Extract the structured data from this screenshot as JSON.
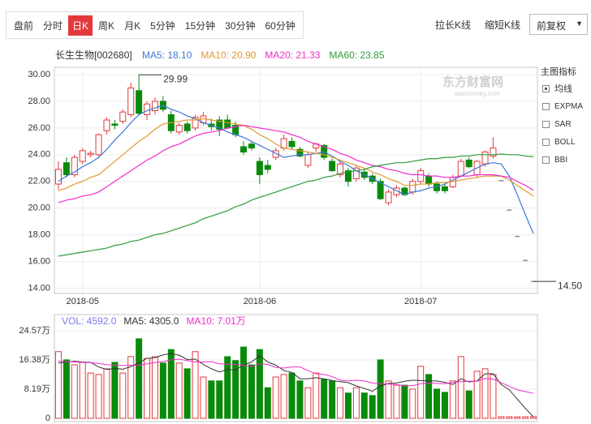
{
  "toolbar": {
    "tabs": [
      "盘前",
      "分时",
      "日K",
      "周K",
      "月K",
      "5分钟",
      "15分钟",
      "30分钟",
      "60分钟"
    ],
    "buttons": [
      "拉长K线",
      "缩短K线"
    ],
    "select": "前复权"
  },
  "sidebar": {
    "title": "主图指标",
    "options": [
      "均线",
      "EXPMA",
      "SAR",
      "BOLL",
      "BBI"
    ]
  },
  "watermark": {
    "name": "东方财富网",
    "url": "eastmoney.com"
  },
  "chart_data": [
    {
      "type": "candlestick",
      "title": "长生生物[002680]",
      "categories": [
        null,
        null,
        null,
        "2018-05",
        null,
        null,
        null,
        null,
        null,
        null,
        null,
        null,
        null,
        null,
        null,
        null,
        null,
        null,
        null,
        null,
        null,
        null,
        null,
        null,
        null,
        "2018-06",
        null,
        null,
        null,
        null,
        null,
        null,
        null,
        null,
        null,
        null,
        null,
        null,
        null,
        null,
        null,
        null,
        null,
        null,
        null,
        "2018-07",
        null,
        null,
        null,
        null,
        null,
        null,
        null,
        null,
        null,
        null,
        null,
        null,
        null,
        null
      ],
      "open": [
        21.8,
        23.4,
        22.5,
        23.5,
        24.0,
        24.0,
        25.8,
        26.3,
        26.5,
        27.0,
        28.8,
        27.0,
        27.3,
        28.0,
        27.0,
        25.7,
        26.3,
        26.0,
        26.4,
        26.3,
        26.6,
        26.6,
        26.2,
        24.6,
        24.8,
        23.5,
        23.2,
        23.8,
        24.5,
        25.0,
        24.4,
        23.2,
        24.5,
        24.7,
        23.5,
        22.5,
        22.8,
        22.2,
        22.7,
        22.4,
        22.0,
        20.4,
        21.0,
        21.5,
        21.2,
        22.0,
        22.4,
        21.8,
        21.6,
        21.6,
        22.4,
        23.6,
        22.5,
        23.3,
        23.9,
        22.05,
        19.85,
        17.87,
        16.08,
        14.5
      ],
      "high": [
        23.5,
        23.8,
        24.0,
        24.5,
        24.3,
        25.6,
        26.8,
        26.6,
        27.4,
        29.4,
        29.99,
        28.0,
        28.3,
        28.4,
        27.3,
        26.4,
        26.5,
        27.0,
        27.2,
        26.7,
        26.9,
        27.0,
        26.5,
        25.0,
        25.0,
        23.8,
        23.6,
        24.5,
        25.5,
        25.3,
        24.6,
        24.2,
        24.9,
        24.8,
        23.7,
        23.5,
        23.0,
        23.2,
        22.9,
        22.6,
        22.2,
        21.4,
        21.7,
        21.6,
        22.2,
        23.0,
        22.6,
        22.0,
        21.8,
        22.5,
        23.7,
        23.8,
        23.6,
        24.3,
        25.3,
        22.05,
        19.85,
        17.87,
        16.08,
        14.5
      ],
      "low": [
        21.4,
        22.3,
        22.3,
        23.3,
        23.8,
        23.9,
        25.5,
        25.9,
        26.3,
        26.8,
        27.0,
        26.6,
        27.0,
        27.2,
        25.6,
        25.5,
        25.6,
        25.8,
        26.2,
        25.8,
        25.4,
        25.9,
        25.3,
        24.0,
        24.3,
        21.8,
        22.6,
        23.6,
        24.3,
        24.4,
        23.8,
        23.0,
        24.2,
        23.6,
        22.7,
        22.3,
        21.6,
        22.0,
        22.1,
        21.8,
        20.6,
        20.2,
        20.8,
        20.9,
        21.0,
        21.8,
        21.6,
        21.1,
        21.1,
        21.5,
        22.3,
        23.0,
        22.3,
        23.1,
        23.7,
        22.05,
        19.85,
        17.87,
        16.08,
        14.5
      ],
      "close": [
        22.9,
        22.5,
        23.8,
        24.3,
        24.1,
        25.5,
        26.6,
        26.2,
        27.2,
        29.0,
        27.1,
        27.8,
        28.0,
        27.4,
        25.8,
        26.2,
        25.8,
        26.8,
        26.9,
        26.1,
        25.9,
        26.0,
        25.5,
        24.2,
        24.5,
        22.5,
        22.9,
        24.3,
        25.2,
        24.6,
        23.9,
        24.0,
        24.8,
        23.8,
        22.8,
        23.3,
        22.0,
        23.0,
        22.3,
        22.0,
        20.7,
        21.2,
        21.5,
        21.0,
        22.0,
        22.8,
        21.8,
        21.3,
        21.3,
        22.3,
        23.5,
        23.1,
        23.5,
        24.2,
        24.5,
        22.05,
        19.85,
        17.87,
        16.08,
        14.5
      ],
      "up_color": "#e4393c",
      "down_color": "#0a8a0a",
      "series": [
        {
          "name": "MA5: 18.10",
          "color": "#3a78d8",
          "values": [
            22.0,
            22.4,
            22.7,
            23.1,
            23.4,
            23.8,
            24.4,
            25.1,
            25.7,
            26.4,
            27.0,
            27.3,
            27.5,
            27.7,
            27.4,
            27.2,
            26.9,
            26.7,
            26.4,
            26.2,
            26.0,
            25.7,
            25.5,
            25.3,
            25.0,
            24.7,
            24.4,
            24.1,
            23.8,
            23.9,
            24.0,
            24.0,
            24.1,
            24.2,
            23.9,
            23.5,
            23.2,
            22.8,
            22.5,
            22.2,
            21.9,
            21.6,
            21.3,
            21.0,
            21.2,
            21.3,
            21.5,
            21.6,
            21.8,
            22.1,
            22.4,
            22.7,
            23.0,
            23.3,
            23.4,
            23.3,
            22.4,
            21.0,
            19.5,
            18.1
          ]
        },
        {
          "name": "MA10: 20.90",
          "color": "#e09a30",
          "values": [
            21.3,
            21.5,
            21.8,
            22.0,
            22.3,
            22.5,
            23.0,
            23.5,
            24.0,
            24.5,
            25.0,
            25.4,
            25.9,
            26.3,
            26.4,
            26.5,
            26.6,
            26.6,
            26.7,
            26.6,
            26.5,
            26.4,
            26.3,
            26.2,
            25.9,
            25.5,
            25.2,
            24.8,
            24.5,
            24.4,
            24.3,
            24.2,
            24.1,
            24.0,
            23.8,
            23.6,
            23.4,
            23.2,
            23.0,
            22.7,
            22.5,
            22.2,
            22.0,
            21.7,
            21.7,
            21.8,
            21.8,
            21.9,
            21.9,
            22.0,
            22.1,
            22.2,
            22.3,
            22.4,
            22.4,
            22.4,
            22.1,
            21.7,
            21.3,
            20.9
          ]
        },
        {
          "name": "MA20: 21.33",
          "color": "#f02ccc",
          "values": [
            20.4,
            20.6,
            20.7,
            20.9,
            21.0,
            21.2,
            21.6,
            22.0,
            22.4,
            22.8,
            23.2,
            23.6,
            23.9,
            24.3,
            24.6,
            24.8,
            25.1,
            25.4,
            25.6,
            25.7,
            25.8,
            26.0,
            26.1,
            26.2,
            26.1,
            26.0,
            25.9,
            25.8,
            25.7,
            25.5,
            25.3,
            25.0,
            24.8,
            24.6,
            24.4,
            24.1,
            23.9,
            23.6,
            23.4,
            23.2,
            23.1,
            22.9,
            22.8,
            22.6,
            22.5,
            22.5,
            22.4,
            22.4,
            22.3,
            22.3,
            22.4,
            22.4,
            22.5,
            22.5,
            22.5,
            22.4,
            22.3,
            22.0,
            21.7,
            21.33
          ]
        },
        {
          "name": "MA60: 23.85",
          "color": "#2e9a3a",
          "values": [
            16.4,
            16.5,
            16.6,
            16.7,
            16.8,
            16.9,
            17.0,
            17.2,
            17.3,
            17.5,
            17.6,
            17.8,
            18.0,
            18.1,
            18.3,
            18.5,
            18.7,
            18.9,
            19.2,
            19.4,
            19.6,
            19.8,
            20.1,
            20.3,
            20.6,
            20.8,
            21.0,
            21.2,
            21.4,
            21.6,
            21.8,
            22.0,
            22.1,
            22.3,
            22.4,
            22.6,
            22.7,
            22.8,
            22.9,
            23.1,
            23.2,
            23.3,
            23.4,
            23.4,
            23.5,
            23.6,
            23.7,
            23.7,
            23.8,
            23.8,
            23.9,
            23.9,
            24.0,
            24.0,
            24.0,
            24.05,
            24.0,
            24.0,
            23.9,
            23.85
          ]
        }
      ],
      "annotations": [
        29.99,
        {
          "value": 14.5,
          "label": "14.50"
        }
      ],
      "ylim": [
        13.6,
        30.55
      ],
      "yticks": [
        {
          "value": 14,
          "label": "14.00"
        },
        {
          "value": 16,
          "label": "16.00"
        },
        {
          "value": 18,
          "label": "18.00"
        },
        {
          "value": 20,
          "label": "20.00"
        },
        {
          "value": 22,
          "label": "22.00"
        },
        {
          "value": 24,
          "label": "24.00"
        },
        {
          "value": 26,
          "label": "26.00"
        },
        {
          "value": 28,
          "label": "28.00"
        },
        {
          "value": 30,
          "label": "30.00"
        }
      ],
      "grid": true
    },
    {
      "type": "bar",
      "series": [
        {
          "name": "VOL: 4592.0",
          "color": "#7b7bf0",
          "values": [
            18.7,
            16.4,
            15.0,
            15.7,
            12.7,
            12.3,
            13.9,
            15.7,
            12.7,
            17.3,
            22.3,
            16.8,
            17.3,
            15.5,
            19.3,
            15.5,
            13.9,
            18.7,
            11.6,
            10.5,
            10.5,
            17.3,
            16.2,
            20.0,
            15.0,
            19.3,
            8.6,
            11.6,
            12.3,
            12.7,
            10.5,
            8.6,
            12.7,
            10.9,
            10.5,
            8.6,
            7.1,
            8.6,
            7.1,
            6.4,
            16.4,
            10.5,
            9.3,
            9.3,
            8.2,
            14.6,
            12.3,
            8.2,
            7.3,
            10.5,
            17.3,
            7.7,
            13.2,
            13.9,
            12.3,
            0.46,
            0.45,
            0.42,
            0.44,
            0.4592
          ]
        },
        {
          "name": "MA5: 4305.0",
          "color": "#333333",
          "type": "line",
          "values": [
            15.5,
            15.8,
            16.0,
            15.8,
            15.7,
            14.4,
            13.7,
            14.0,
            13.8,
            14.5,
            15.6,
            16.8,
            17.0,
            17.8,
            18.2,
            17.7,
            16.5,
            16.6,
            15.1,
            13.9,
            13.0,
            13.7,
            13.6,
            14.9,
            15.8,
            17.6,
            15.8,
            14.9,
            13.4,
            12.9,
            11.1,
            11.1,
            11.4,
            11.1,
            10.6,
            10.3,
            10.0,
            9.1,
            8.4,
            7.6,
            9.1,
            9.8,
            9.9,
            10.4,
            10.7,
            10.6,
            10.5,
            10.5,
            10.1,
            9.5,
            11.1,
            10.2,
            10.5,
            12.5,
            12.5,
            9.5,
            8.0,
            5.4,
            2.8,
            0.4305
          ]
        },
        {
          "name": "MA10: 7.01万",
          "color": "#f02ccc",
          "type": "line",
          "values": [
            16.0,
            15.9,
            15.8,
            15.7,
            15.6,
            15.4,
            15.0,
            14.9,
            14.8,
            14.9,
            14.9,
            15.3,
            15.7,
            15.9,
            16.4,
            16.6,
            16.2,
            15.8,
            15.8,
            15.9,
            15.3,
            15.2,
            15.1,
            14.9,
            14.5,
            15.3,
            15.1,
            14.3,
            14.1,
            14.4,
            14.4,
            13.4,
            12.5,
            12.3,
            11.7,
            10.7,
            10.5,
            10.7,
            10.5,
            9.9,
            9.7,
            9.6,
            9.5,
            9.1,
            9.2,
            9.7,
            9.9,
            9.8,
            9.7,
            10.1,
            10.3,
            10.4,
            10.4,
            11.2,
            11.0,
            10.0,
            9.0,
            8.0,
            7.5,
            7.01
          ]
        }
      ],
      "ylim": [
        -0.9,
        29.1
      ],
      "yticks": [
        0,
        {
          "value": 8.19,
          "label": "8.19万"
        },
        {
          "value": 16.38,
          "label": "16.38万"
        },
        {
          "value": 24.57,
          "label": "24.57万"
        }
      ],
      "grid": true
    }
  ]
}
